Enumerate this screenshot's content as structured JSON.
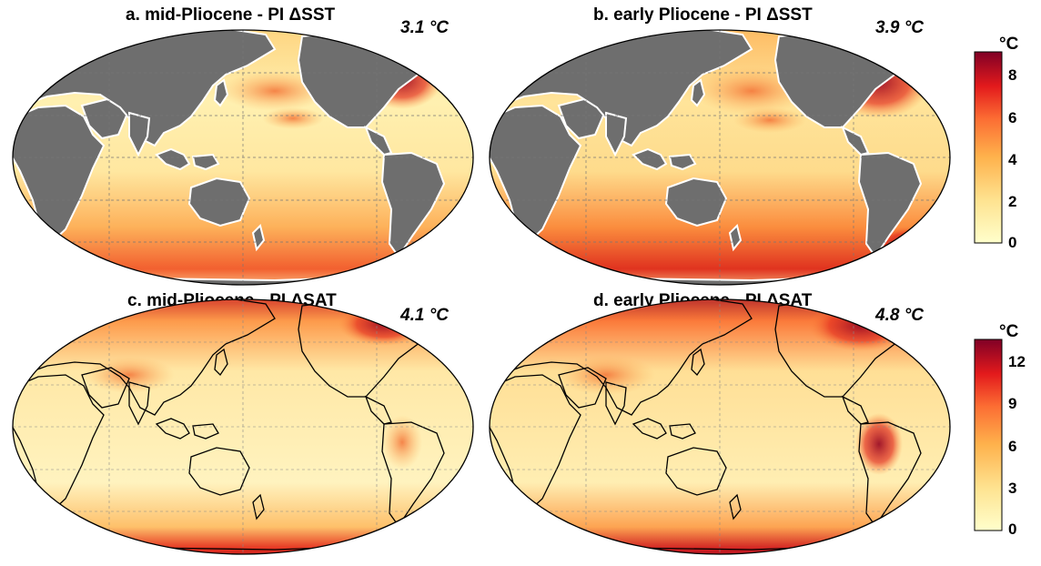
{
  "colors": {
    "land": "#6e6e6e",
    "cold": "#ffffcc",
    "warm_mid": "#fd8d3c",
    "hot": "#800026"
  },
  "panels": [
    {
      "title": "a. mid-Pliocene - PI  ΔSST",
      "mean": "3.1 °C",
      "variable": "SST",
      "land_shown": true
    },
    {
      "title": "b. early Pliocene - PI  ΔSST",
      "mean": "3.9 °C",
      "variable": "SST",
      "land_shown": true
    },
    {
      "title": "c. mid-Pliocene - PI  ΔSAT",
      "mean": "4.1 °C",
      "variable": "SAT",
      "land_shown": false
    },
    {
      "title": "d. early Pliocene - PI  ΔSAT",
      "mean": "4.8 °C",
      "variable": "SAT",
      "land_shown": false
    }
  ],
  "colorbars": [
    {
      "unit": "°C",
      "ticks": [
        "8",
        "6",
        "4",
        "2",
        "0"
      ],
      "range": [
        0,
        9
      ]
    },
    {
      "unit": "°C",
      "ticks": [
        "12",
        "9",
        "6",
        "3",
        "0"
      ],
      "range": [
        0,
        13
      ]
    }
  ]
}
